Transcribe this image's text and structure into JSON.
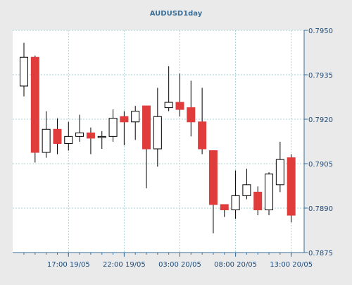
{
  "chart_data": {
    "type": "candlestick",
    "title": "AUDUSD1day",
    "xlabel": "",
    "ylabel": "",
    "ylim": [
      0.7875,
      0.795
    ],
    "y_ticks": [
      "0.7950",
      "0.7935",
      "0.7920",
      "0.7905",
      "0.7890",
      "0.7875"
    ],
    "x_ticks": [
      "17:00 19/05",
      "22:00 19/05",
      "03:00 20/05",
      "08:00 20/05",
      "13:00 20/05"
    ],
    "grid": true,
    "candles": [
      {
        "o": 0.79312,
        "h": 0.79458,
        "l": 0.79277,
        "c": 0.79409,
        "dir": "up"
      },
      {
        "o": 0.79409,
        "h": 0.79415,
        "l": 0.79054,
        "c": 0.79088,
        "dir": "down"
      },
      {
        "o": 0.79088,
        "h": 0.79227,
        "l": 0.7907,
        "c": 0.79166,
        "dir": "up"
      },
      {
        "o": 0.79166,
        "h": 0.79203,
        "l": 0.79082,
        "c": 0.79118,
        "dir": "down"
      },
      {
        "o": 0.79118,
        "h": 0.79191,
        "l": 0.79094,
        "c": 0.79142,
        "dir": "up"
      },
      {
        "o": 0.79142,
        "h": 0.79215,
        "l": 0.79124,
        "c": 0.79154,
        "dir": "up"
      },
      {
        "o": 0.79154,
        "h": 0.79172,
        "l": 0.79082,
        "c": 0.79136,
        "dir": "down"
      },
      {
        "o": 0.79142,
        "h": 0.7916,
        "l": 0.791,
        "c": 0.79142,
        "dir": "up"
      },
      {
        "o": 0.79142,
        "h": 0.79233,
        "l": 0.79124,
        "c": 0.79203,
        "dir": "up"
      },
      {
        "o": 0.79209,
        "h": 0.79227,
        "l": 0.79112,
        "c": 0.79191,
        "dir": "down"
      },
      {
        "o": 0.79191,
        "h": 0.79245,
        "l": 0.7913,
        "c": 0.79227,
        "dir": "up"
      },
      {
        "o": 0.79245,
        "h": 0.79245,
        "l": 0.78967,
        "c": 0.791,
        "dir": "down"
      },
      {
        "o": 0.791,
        "h": 0.79306,
        "l": 0.7904,
        "c": 0.79209,
        "dir": "up"
      },
      {
        "o": 0.79239,
        "h": 0.79379,
        "l": 0.79227,
        "c": 0.79257,
        "dir": "up"
      },
      {
        "o": 0.79257,
        "h": 0.79354,
        "l": 0.79209,
        "c": 0.79233,
        "dir": "down"
      },
      {
        "o": 0.79239,
        "h": 0.7933,
        "l": 0.79142,
        "c": 0.79191,
        "dir": "down"
      },
      {
        "o": 0.79191,
        "h": 0.79306,
        "l": 0.79082,
        "c": 0.791,
        "dir": "down"
      },
      {
        "o": 0.79094,
        "h": 0.79094,
        "l": 0.78815,
        "c": 0.78912,
        "dir": "down"
      },
      {
        "o": 0.78912,
        "h": 0.78912,
        "l": 0.7887,
        "c": 0.78894,
        "dir": "down"
      },
      {
        "o": 0.78894,
        "h": 0.79027,
        "l": 0.78864,
        "c": 0.78942,
        "dir": "up"
      },
      {
        "o": 0.78942,
        "h": 0.79033,
        "l": 0.7893,
        "c": 0.78979,
        "dir": "up"
      },
      {
        "o": 0.78954,
        "h": 0.78973,
        "l": 0.78876,
        "c": 0.78894,
        "dir": "down"
      },
      {
        "o": 0.78894,
        "h": 0.79021,
        "l": 0.78876,
        "c": 0.79015,
        "dir": "up"
      },
      {
        "o": 0.78979,
        "h": 0.79124,
        "l": 0.78954,
        "c": 0.79064,
        "dir": "up"
      },
      {
        "o": 0.7907,
        "h": 0.79082,
        "l": 0.78852,
        "c": 0.78876,
        "dir": "down"
      }
    ],
    "colors": {
      "background": "#eaeaea",
      "plot_background": "#ffffff",
      "up_fill": "#ffffff",
      "down_fill": "#e03c3c",
      "candle_edge": "#000000",
      "grid": "#a8d4d4",
      "axis": "#3a6f9a",
      "title": "#3a6f9a",
      "tick_label": "#1e4a78"
    }
  }
}
